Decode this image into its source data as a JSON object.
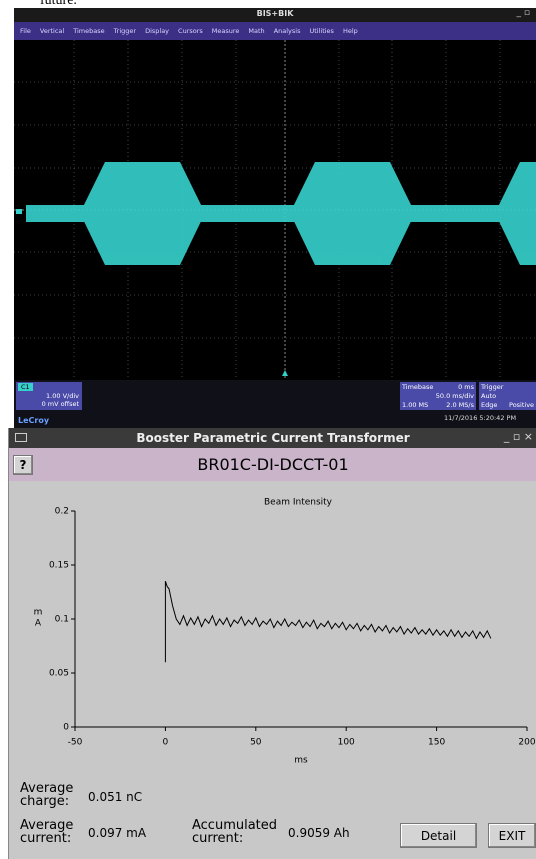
{
  "caption_fragment": "future.",
  "scope": {
    "window_title": "BIS+BIK",
    "menu": [
      "File",
      "Vertical",
      "Timebase",
      "Trigger",
      "Display",
      "Cursors",
      "Measure",
      "Math",
      "Analysis",
      "Utilities",
      "Help"
    ],
    "channel": {
      "name": "C1",
      "scale": "1.00 V/div",
      "offset": "0 mV offset"
    },
    "timebase": {
      "label": "Timebase",
      "delay": "0 ms",
      "scale": "50.0 ms/div",
      "samples": "1.00 MS",
      "rate": "2.0 MS/s"
    },
    "trigger": {
      "label": "Trigger",
      "mode": "Auto",
      "type": "Edge",
      "slope": "Positive"
    },
    "timestamp": "11/7/2016 5:20:42 PM",
    "brand": "LeCroy"
  },
  "panel": {
    "window_title": "Booster Parametric Current Transformer",
    "help_button": "?",
    "device": "BR01C-DI-DCCT-01",
    "stats": [
      {
        "label": "Average charge:",
        "value": "0.051 nC"
      },
      {
        "label": "Average current:",
        "value": "0.097 mA"
      },
      {
        "label": "Accumulated current:",
        "value": "0.9059 Ah"
      }
    ],
    "buttons": [
      "Detail",
      "EXIT"
    ]
  },
  "chart_data": {
    "type": "line",
    "title": "Beam Intensity",
    "xlabel": "ms",
    "ylabel": [
      "m",
      "A"
    ],
    "xlim": [
      -50,
      200
    ],
    "ylim": [
      0,
      0.2
    ],
    "xticks": [
      -50,
      0,
      50,
      100,
      150,
      200
    ],
    "yticks": [
      0,
      0.05,
      0.1,
      0.15,
      0.2
    ],
    "color": "#000000",
    "x": [
      0,
      0,
      1,
      2,
      3,
      4,
      6,
      8,
      10,
      12,
      14,
      16,
      18,
      20,
      22,
      24,
      26,
      28,
      30,
      32,
      34,
      36,
      38,
      40,
      42,
      44,
      46,
      48,
      50,
      52,
      54,
      56,
      58,
      60,
      62,
      64,
      66,
      68,
      70,
      72,
      74,
      76,
      78,
      80,
      82,
      84,
      86,
      88,
      90,
      92,
      94,
      96,
      98,
      100,
      102,
      104,
      106,
      108,
      110,
      112,
      114,
      116,
      118,
      120,
      122,
      124,
      126,
      128,
      130,
      132,
      134,
      136,
      138,
      140,
      142,
      144,
      146,
      148,
      150,
      152,
      154,
      156,
      158,
      160,
      162,
      164,
      166,
      168,
      170,
      172,
      174,
      176,
      178,
      180
    ],
    "values": [
      0.06,
      0.135,
      0.13,
      0.128,
      0.12,
      0.112,
      0.1,
      0.095,
      0.103,
      0.094,
      0.101,
      0.095,
      0.102,
      0.093,
      0.1,
      0.096,
      0.103,
      0.094,
      0.1,
      0.095,
      0.101,
      0.093,
      0.099,
      0.096,
      0.102,
      0.094,
      0.099,
      0.095,
      0.101,
      0.093,
      0.098,
      0.095,
      0.1,
      0.092,
      0.098,
      0.094,
      0.1,
      0.093,
      0.097,
      0.094,
      0.099,
      0.092,
      0.097,
      0.093,
      0.099,
      0.091,
      0.096,
      0.093,
      0.098,
      0.091,
      0.096,
      0.092,
      0.097,
      0.09,
      0.095,
      0.091,
      0.096,
      0.089,
      0.094,
      0.09,
      0.095,
      0.088,
      0.093,
      0.089,
      0.094,
      0.087,
      0.092,
      0.088,
      0.093,
      0.086,
      0.091,
      0.087,
      0.092,
      0.086,
      0.09,
      0.086,
      0.091,
      0.085,
      0.09,
      0.085,
      0.089,
      0.084,
      0.09,
      0.084,
      0.089,
      0.083,
      0.088,
      0.084,
      0.089,
      0.082,
      0.088,
      0.083,
      0.089,
      0.082
    ]
  }
}
